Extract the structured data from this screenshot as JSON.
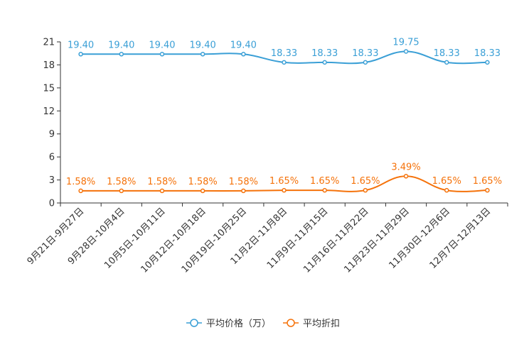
{
  "chart_data": {
    "type": "line",
    "title": "",
    "xlabel": "",
    "ylabel": "",
    "ylim": [
      0,
      21
    ],
    "yticks": [
      0,
      3,
      6,
      9,
      12,
      15,
      18,
      21
    ],
    "grid": false,
    "legend_position": "bottom-center",
    "categories": [
      "9月21日-9月27日",
      "9月28日-10月4日",
      "10月5日-10月11日",
      "10月12日-10月18日",
      "10月19日-10月25日",
      "11月2日-11月8日",
      "11月9日-11月15日",
      "11月16日-11月22日",
      "11月23日-11月29日",
      "11月30日-12月6日",
      "12月7日-12月13日"
    ],
    "series": [
      {
        "name": "平均价格（万）",
        "color": "#3a9fd6",
        "values": [
          19.4,
          19.4,
          19.4,
          19.4,
          19.4,
          18.33,
          18.33,
          18.33,
          19.75,
          18.33,
          18.33
        ],
        "labels": [
          "19.40",
          "19.40",
          "19.40",
          "19.40",
          "19.40",
          "18.33",
          "18.33",
          "18.33",
          "19.75",
          "18.33",
          "18.33"
        ]
      },
      {
        "name": "平均折扣",
        "color": "#f5720a",
        "values": [
          1.58,
          1.58,
          1.58,
          1.58,
          1.58,
          1.65,
          1.65,
          1.65,
          3.49,
          1.65,
          1.65
        ],
        "labels": [
          "1.58%",
          "1.58%",
          "1.58%",
          "1.58%",
          "1.58%",
          "1.65%",
          "1.65%",
          "1.65%",
          "3.49%",
          "1.65%",
          "1.65%"
        ]
      }
    ]
  }
}
